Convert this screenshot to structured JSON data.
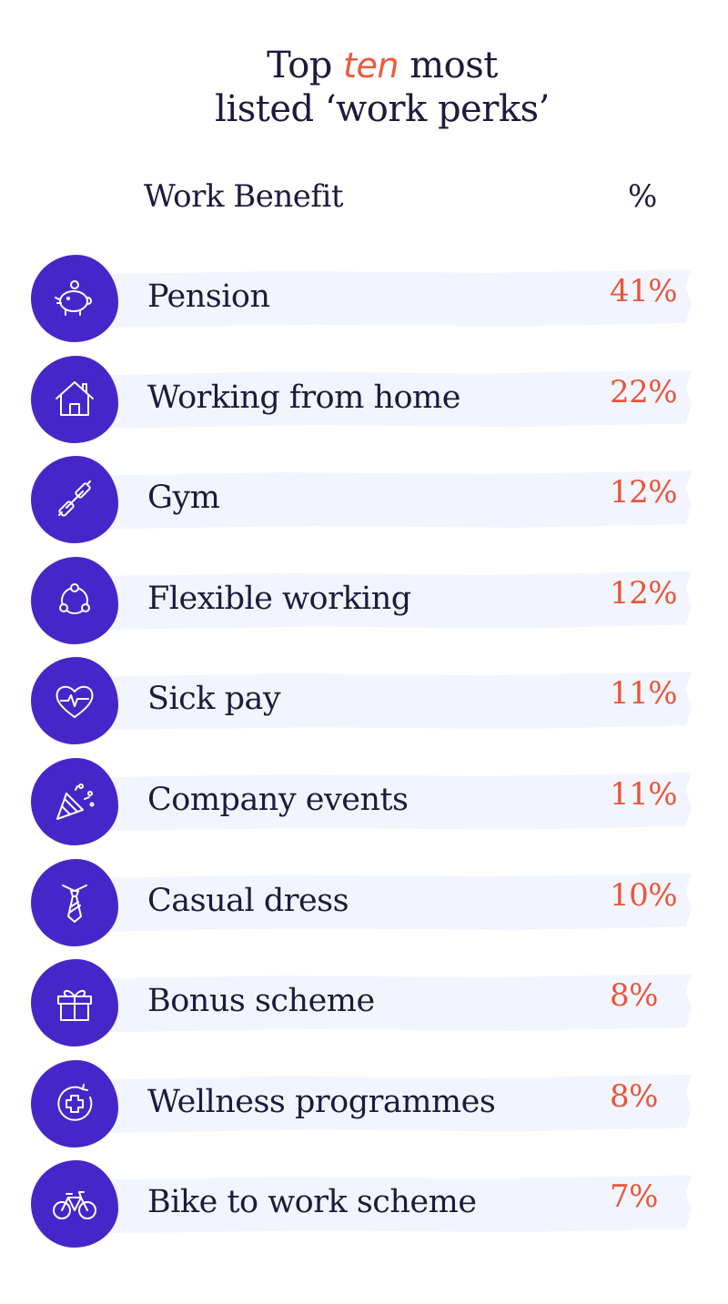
{
  "title": {
    "line1_pre": "Top",
    "line1_accent": "ten",
    "line1_post": "most",
    "line2": "listed ‘work perks’"
  },
  "headers": {
    "benefit": "Work Benefit",
    "percent": "%"
  },
  "colors": {
    "icon_bg": "#4527c9",
    "value": "#ea553a",
    "band": "#f2f5fd",
    "text": "#1e1a3c"
  },
  "rows": [
    {
      "label": "Pension",
      "value_text": "41%",
      "icon": "piggy-bank-icon"
    },
    {
      "label": "Working from home",
      "value_text": "22%",
      "icon": "house-icon"
    },
    {
      "label": "Gym",
      "value_text": "12%",
      "icon": "dumbbell-icon"
    },
    {
      "label": "Flexible working",
      "value_text": "12%",
      "icon": "flexible-cycle-icon"
    },
    {
      "label": "Sick pay",
      "value_text": "11%",
      "icon": "heart-pulse-icon"
    },
    {
      "label": "Company events",
      "value_text": "11%",
      "icon": "party-popper-icon"
    },
    {
      "label": "Casual dress",
      "value_text": "10%",
      "icon": "tie-icon"
    },
    {
      "label": "Bonus scheme",
      "value_text": "8%",
      "icon": "gift-icon"
    },
    {
      "label": "Wellness programmes",
      "value_text": "8%",
      "icon": "wellness-plus-icon"
    },
    {
      "label": "Bike to work scheme",
      "value_text": "7%",
      "icon": "bicycle-icon"
    }
  ],
  "chart_data": {
    "type": "table",
    "title": "Top ten most listed ‘work perks’",
    "columns": [
      "Work Benefit",
      "%"
    ],
    "categories": [
      "Pension",
      "Working from home",
      "Gym",
      "Flexible working",
      "Sick pay",
      "Company events",
      "Casual dress",
      "Bonus scheme",
      "Wellness programmes",
      "Bike to work scheme"
    ],
    "values": [
      41,
      22,
      12,
      12,
      11,
      11,
      10,
      8,
      8,
      7
    ]
  }
}
